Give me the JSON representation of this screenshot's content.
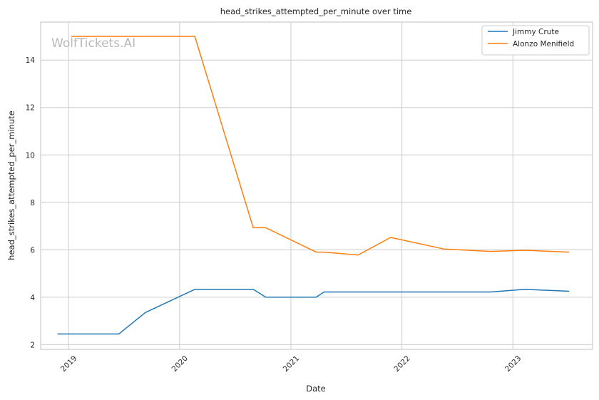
{
  "watermark": "WolfTickets.AI",
  "chart_data": {
    "type": "line",
    "title": "head_strikes_attempted_per_minute over time",
    "xlabel": "Date",
    "ylabel": "head_strikes_attempted_per_minute",
    "x_type": "date",
    "xlim": [
      "2018-10-01",
      "2023-09-20"
    ],
    "ylim": [
      1.8,
      15.6
    ],
    "x_ticks": [
      {
        "date": "2019-01-01",
        "label": "2019"
      },
      {
        "date": "2020-01-01",
        "label": "2020"
      },
      {
        "date": "2021-01-01",
        "label": "2021"
      },
      {
        "date": "2022-01-01",
        "label": "2022"
      },
      {
        "date": "2023-01-01",
        "label": "2023"
      }
    ],
    "y_ticks": [
      2,
      4,
      6,
      8,
      10,
      12,
      14
    ],
    "grid": true,
    "legend_position": "upper-right",
    "series": [
      {
        "name": "Jimmy Crute",
        "color": "#1f77b4",
        "points": [
          {
            "x": "2018-11-25",
            "y": 2.45
          },
          {
            "x": "2019-06-15",
            "y": 2.45
          },
          {
            "x": "2019-09-10",
            "y": 3.35
          },
          {
            "x": "2020-02-20",
            "y": 4.33
          },
          {
            "x": "2020-08-30",
            "y": 4.33
          },
          {
            "x": "2020-10-10",
            "y": 4.0
          },
          {
            "x": "2021-03-25",
            "y": 4.0
          },
          {
            "x": "2021-04-20",
            "y": 4.22
          },
          {
            "x": "2022-10-20",
            "y": 4.22
          },
          {
            "x": "2023-02-10",
            "y": 4.33
          },
          {
            "x": "2023-07-05",
            "y": 4.25
          }
        ]
      },
      {
        "name": "Alonzo Menifield",
        "color": "#ff7f0e",
        "points": [
          {
            "x": "2019-01-10",
            "y": 15.0
          },
          {
            "x": "2020-02-20",
            "y": 15.0
          },
          {
            "x": "2020-08-30",
            "y": 6.93
          },
          {
            "x": "2020-10-10",
            "y": 6.93
          },
          {
            "x": "2021-03-25",
            "y": 5.9
          },
          {
            "x": "2021-04-20",
            "y": 5.9
          },
          {
            "x": "2021-08-10",
            "y": 5.78
          },
          {
            "x": "2021-11-25",
            "y": 6.52
          },
          {
            "x": "2022-05-20",
            "y": 6.03
          },
          {
            "x": "2022-10-20",
            "y": 5.93
          },
          {
            "x": "2023-02-10",
            "y": 5.98
          },
          {
            "x": "2023-07-05",
            "y": 5.9
          }
        ]
      }
    ]
  }
}
